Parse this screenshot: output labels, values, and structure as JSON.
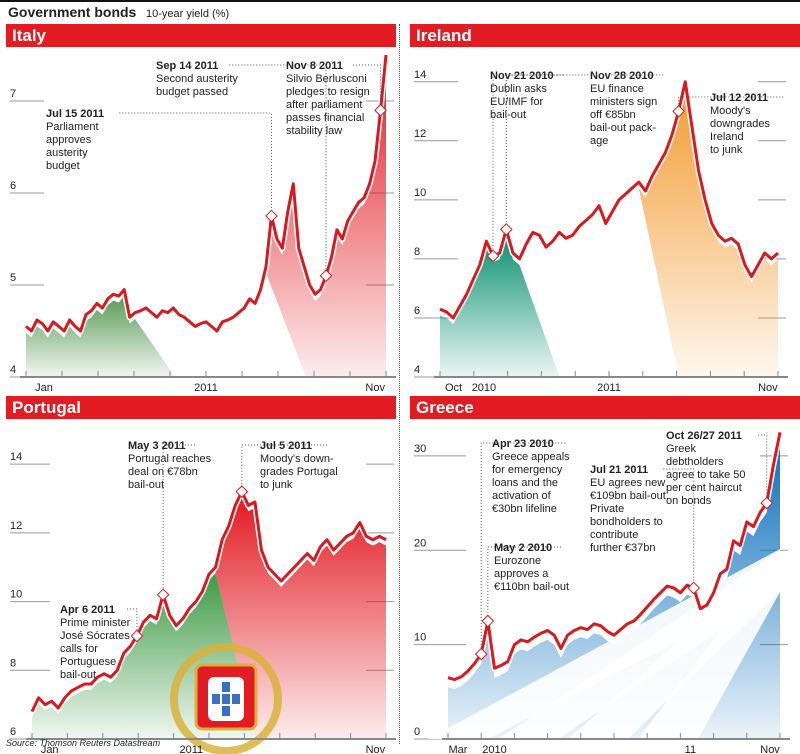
{
  "header": {
    "title": "Government bonds",
    "subtitle": "10-year yield (%)"
  },
  "source": "Source: Thomson Reuters Datastream",
  "chart_data": [
    {
      "type": "line",
      "title": "Italy",
      "ylim": [
        4,
        7.5
      ],
      "yticks": [
        4,
        5,
        6,
        7
      ],
      "xlabels": [
        "Jan",
        "2011",
        "Nov"
      ],
      "xlabel_pos": [
        0.05,
        0.5,
        0.97
      ],
      "colors": {
        "line": "#d71920",
        "fill_early": "#5a9a55",
        "fill_late": "#e31b23"
      },
      "values": [
        4.55,
        4.5,
        4.62,
        4.58,
        4.5,
        4.6,
        4.55,
        4.5,
        4.62,
        4.55,
        4.5,
        4.68,
        4.72,
        4.8,
        4.75,
        4.85,
        4.9,
        4.88,
        4.95,
        4.65,
        4.7,
        4.72,
        4.75,
        4.7,
        4.65,
        4.72,
        4.7,
        4.75,
        4.68,
        4.65,
        4.6,
        4.55,
        4.58,
        4.6,
        4.55,
        4.5,
        4.6,
        4.62,
        4.65,
        4.7,
        4.75,
        4.85,
        4.8,
        4.95,
        5.2,
        5.75,
        5.5,
        5.4,
        5.8,
        6.1,
        5.4,
        5.2,
        5.0,
        4.9,
        4.95,
        5.1,
        5.3,
        5.6,
        5.5,
        5.7,
        5.8,
        5.9,
        5.95,
        6.1,
        6.35,
        6.9,
        7.5
      ],
      "fill_early_range": [
        0,
        20
      ],
      "fill_late_start": 44,
      "annotations": [
        {
          "date": "Jul 15 2011",
          "text": [
            "Parliament",
            "approves",
            "austerity",
            "budget"
          ],
          "idx": 45
        },
        {
          "date": "Sep 14 2011",
          "text": [
            "Second austerity",
            "budget passed"
          ],
          "idx": 55
        },
        {
          "date": "Nov 8 2011",
          "text": [
            "Silvio Berlusconi",
            "pledges to resign",
            "after parliament",
            "passes financial",
            "stability law"
          ],
          "idx": 65
        }
      ]
    },
    {
      "type": "line",
      "title": "Ireland",
      "ylim": [
        4,
        14.5
      ],
      "yticks": [
        4,
        6,
        8,
        10,
        12,
        14
      ],
      "xlabels": [
        "Oct",
        "2010",
        "2011",
        "Nov"
      ],
      "xlabel_pos": [
        0.04,
        0.13,
        0.5,
        0.97
      ],
      "colors": {
        "line": "#d71920",
        "fill_early": "#0a9070",
        "fill_late": "#f39c34"
      },
      "values": [
        6.3,
        6.2,
        6.0,
        6.4,
        6.8,
        7.3,
        7.8,
        8.6,
        8.1,
        8.2,
        9.0,
        8.2,
        8.0,
        8.5,
        8.9,
        8.8,
        8.4,
        8.6,
        8.9,
        8.7,
        8.8,
        9.1,
        9.3,
        9.5,
        9.8,
        9.2,
        9.6,
        10.0,
        10.2,
        10.4,
        10.6,
        10.3,
        10.8,
        11.2,
        11.6,
        12.2,
        13.0,
        14.0,
        12.5,
        11.0,
        10.0,
        9.2,
        8.8,
        8.6,
        8.7,
        8.5,
        7.8,
        7.4,
        7.8,
        8.2,
        8.0,
        8.2
      ],
      "fill_early_range": [
        0,
        12
      ],
      "fill_late_start": 30,
      "annotations": [
        {
          "date": "Nov 21 2010",
          "text": [
            "Dublin asks",
            "EU/IMF for",
            "bail-out"
          ],
          "idx": 8
        },
        {
          "date": "Nov 28 2010",
          "text": [
            "EU finance",
            "ministers sign",
            "off €85bn",
            "bail-out pack-",
            "age"
          ],
          "idx": 10
        },
        {
          "date": "Jul 12 2011",
          "text": [
            "Moody's",
            "downgrades",
            "Ireland",
            "to junk"
          ],
          "idx": 36
        }
      ]
    },
    {
      "type": "line",
      "title": "Portugal",
      "ylim": [
        6,
        14.5
      ],
      "yticks": [
        6,
        8,
        10,
        12,
        14
      ],
      "xlabels": [
        "Jan",
        "2011",
        "Nov"
      ],
      "xlabel_pos": [
        0.05,
        0.45,
        0.97
      ],
      "colors": {
        "line": "#d71920",
        "fill_early": "#3e9a45",
        "fill_late": "#e31b23"
      },
      "values": [
        6.8,
        7.2,
        7.0,
        7.1,
        6.9,
        7.2,
        7.4,
        7.5,
        7.6,
        7.6,
        7.8,
        7.9,
        7.8,
        8.0,
        8.5,
        8.7,
        9.0,
        9.4,
        9.6,
        9.5,
        10.2,
        9.6,
        9.3,
        9.5,
        9.8,
        10.0,
        10.3,
        10.8,
        11.0,
        11.8,
        12.2,
        12.8,
        13.2,
        12.8,
        12.9,
        11.5,
        11.0,
        10.8,
        10.6,
        10.8,
        11.0,
        11.2,
        11.4,
        11.2,
        11.6,
        11.8,
        11.5,
        11.7,
        11.9,
        12.0,
        12.3,
        11.9,
        11.8,
        11.9,
        11.8
      ],
      "fill_early_range": [
        0,
        28
      ],
      "fill_late_start": 28,
      "annotations": [
        {
          "date": "Apr 6 2011",
          "text": [
            "Prime minister",
            "José Sócrates",
            "calls for",
            "Portuguese",
            "bail-out"
          ],
          "idx": 16
        },
        {
          "date": "May 3 2011",
          "text": [
            "Portugal reaches",
            "deal on €78bn",
            "bail-out"
          ],
          "idx": 20
        },
        {
          "date": "Jul 5 2011",
          "text": [
            "Moody's down-",
            "grades Portugal",
            "to junk"
          ],
          "idx": 32
        }
      ]
    },
    {
      "type": "line",
      "title": "Greece",
      "ylim": [
        0,
        32
      ],
      "yticks": [
        0,
        10,
        20,
        30
      ],
      "xlabels": [
        "Mar",
        "2010",
        "11",
        "Nov"
      ],
      "xlabel_pos": [
        0.03,
        0.14,
        0.73,
        0.97
      ],
      "colors": {
        "line": "#d71920",
        "fill": "#0a6fbd"
      },
      "values": [
        6.5,
        6.3,
        6.6,
        7.2,
        8.0,
        9.0,
        12.5,
        7.5,
        7.8,
        8.2,
        10.0,
        10.5,
        10.3,
        10.8,
        11.2,
        11.5,
        11.0,
        9.6,
        11.0,
        11.5,
        11.8,
        11.6,
        12.2,
        12.0,
        11.4,
        11.0,
        11.6,
        12.2,
        12.5,
        13.2,
        14.0,
        14.8,
        15.5,
        16.2,
        16.0,
        15.5,
        16.3,
        16.0,
        13.8,
        14.2,
        15.5,
        17.5,
        18.0,
        21.0,
        20.5,
        23.0,
        22.5,
        24.0,
        25.0,
        29.0,
        32.5
      ],
      "fill_start": 0,
      "annotations": [
        {
          "date": "Apr 23 2010",
          "text": [
            "Greece appeals",
            "for emergency",
            "loans and the",
            "activation of",
            "€30bn lifeline"
          ],
          "idx": 5
        },
        {
          "date": "May 2 2010",
          "text": [
            "Eurozone",
            "approves a",
            "€110bn bail-out"
          ],
          "idx": 6
        },
        {
          "date": "Jul 21 2011",
          "text": [
            "EU agrees new",
            "€109bn bail-out.",
            "Private",
            "bondholders to",
            "contribute",
            "further €37bn"
          ],
          "idx": 37
        },
        {
          "date": "Oct 26/27 2011",
          "text": [
            "Greek",
            "debtholders",
            "agree to take 50",
            "per cent haircut",
            "on bonds"
          ],
          "idx": 48
        }
      ]
    }
  ]
}
